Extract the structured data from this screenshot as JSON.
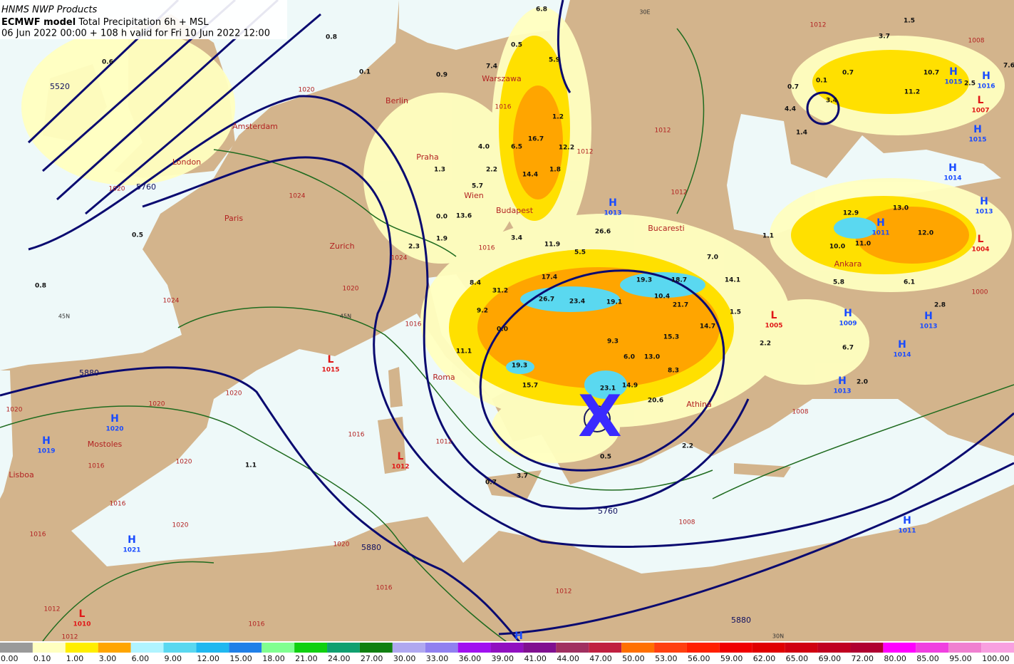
{
  "header": {
    "source": "HNMS NWP Products",
    "model": "ECMWF model",
    "product": "Total Precipitation 6h + MSL",
    "valid": "06 Jun 2022 00:00 + 108 h valid for Fri 10 Jun 2022 12:00"
  },
  "cities": [
    "Berlin",
    "Warszawa",
    "Amsterdam",
    "London",
    "Praha",
    "Wien",
    "Budapest",
    "Paris",
    "Bucaresti",
    "Zurich",
    "Roma",
    "Athina",
    "Ankara",
    "Mostoles",
    "Lisboa"
  ],
  "pressure_centers": [
    {
      "kind": "H",
      "value": 1013
    },
    {
      "kind": "H",
      "value": 1015
    },
    {
      "kind": "H",
      "value": 1016
    },
    {
      "kind": "L",
      "value": 1007
    },
    {
      "kind": "H",
      "value": 1015
    },
    {
      "kind": "H",
      "value": 1014
    },
    {
      "kind": "H",
      "value": 1013
    },
    {
      "kind": "H",
      "value": 1011
    },
    {
      "kind": "L",
      "value": 1004
    },
    {
      "kind": "L",
      "value": 1005
    },
    {
      "kind": "H",
      "value": 1009
    },
    {
      "kind": "H",
      "value": 1013
    },
    {
      "kind": "H",
      "value": 1014
    },
    {
      "kind": "H",
      "value": 1013
    },
    {
      "kind": "L",
      "value": 1015
    },
    {
      "kind": "H",
      "value": 1020
    },
    {
      "kind": "H",
      "value": 1019
    },
    {
      "kind": "L",
      "value": 1012
    },
    {
      "kind": "H",
      "value": 1021
    },
    {
      "kind": "H",
      "value": 1011
    },
    {
      "kind": "L",
      "value": 1010
    },
    {
      "kind": "H"
    }
  ],
  "isobar_labels": [
    1012,
    1008,
    1020,
    1016,
    1012,
    1012,
    1012,
    1024,
    1020,
    1016,
    1024,
    1020,
    1016,
    1024,
    1020,
    1020,
    1020,
    1016,
    1012,
    1020,
    1016,
    1016,
    1020,
    1016,
    1020,
    1016,
    1012,
    1008,
    1016,
    1012,
    1012,
    1000,
    1008
  ],
  "height_labels": [
    5520,
    5760,
    5880,
    5880,
    5760,
    5880
  ],
  "graticule_labels": [
    "30E",
    "45N",
    "45N",
    "30N"
  ],
  "precip_labels": [
    "6.8",
    "0.8",
    "0.6",
    "0.5",
    "1.5",
    "3.7",
    "5.9",
    "7.4",
    "0.9",
    "0.1",
    "7.6",
    "0.7",
    "10.7",
    "2.5",
    "0.1",
    "0.7",
    "11.2",
    "3.4",
    "4.4",
    "1.4",
    "1.2",
    "16.7",
    "6.5",
    "12.2",
    "4.0",
    "14.4",
    "1.8",
    "2.2",
    "1.3",
    "5.7",
    "13.6",
    "0.0",
    "1.9",
    "2.3",
    "3.4",
    "11.9",
    "5.5",
    "26.6",
    "0.5",
    "0.8",
    "1.1",
    "12.9",
    "13.0",
    "12.0",
    "10.0",
    "11.0",
    "6.1",
    "2.8",
    "5.8",
    "7.0",
    "17.4",
    "8.4",
    "31.2",
    "26.7",
    "23.4",
    "19.1",
    "19.3",
    "18.7",
    "14.1",
    "10.4",
    "21.7",
    "9.2",
    "0.0",
    "9.3",
    "15.3",
    "14.7",
    "11.1",
    "6.0",
    "13.0",
    "19.3",
    "8.3",
    "15.7",
    "14.9",
    "23.1",
    "20.6",
    "2.2",
    "3.7",
    "0.7",
    "1.1",
    "0.5",
    "2.2",
    "6.7",
    "2.0",
    "1.5"
  ],
  "marker": "X",
  "legend": [
    {
      "label": "0.00",
      "color": "#9a9a9a"
    },
    {
      "label": "0.10",
      "color": "#ffffc0"
    },
    {
      "label": "1.00",
      "color": "#ffee00"
    },
    {
      "label": "3.00",
      "color": "#ffa500"
    },
    {
      "label": "6.00",
      "color": "#b0f4ff"
    },
    {
      "label": "9.00",
      "color": "#5ad8f0"
    },
    {
      "label": "12.00",
      "color": "#20b8f0"
    },
    {
      "label": "15.00",
      "color": "#2080e8"
    },
    {
      "label": "18.00",
      "color": "#80ff90"
    },
    {
      "label": "21.00",
      "color": "#10d010"
    },
    {
      "label": "24.00",
      "color": "#10a070"
    },
    {
      "label": "27.00",
      "color": "#108010"
    },
    {
      "label": "30.00",
      "color": "#b0a8f0"
    },
    {
      "label": "33.00",
      "color": "#9080f0"
    },
    {
      "label": "36.00",
      "color": "#a010f0"
    },
    {
      "label": "39.00",
      "color": "#9010c0"
    },
    {
      "label": "41.00",
      "color": "#801090"
    },
    {
      "label": "44.00",
      "color": "#a03060"
    },
    {
      "label": "47.00",
      "color": "#c02040"
    },
    {
      "label": "50.00",
      "color": "#ff7000"
    },
    {
      "label": "53.00",
      "color": "#ff4010"
    },
    {
      "label": "56.00",
      "color": "#ff2000"
    },
    {
      "label": "59.00",
      "color": "#f00000"
    },
    {
      "label": "62.00",
      "color": "#e00000"
    },
    {
      "label": "65.00",
      "color": "#d00010"
    },
    {
      "label": "69.00",
      "color": "#c00020"
    },
    {
      "label": "72.00",
      "color": "#b00030"
    },
    {
      "label": "80.00",
      "color": "#ff00ff"
    },
    {
      "label": "85.00",
      "color": "#f040e0"
    },
    {
      "label": "95.00",
      "color": "#f080d0"
    },
    {
      "label": "100.00",
      "color": "#f8a0e0"
    }
  ]
}
